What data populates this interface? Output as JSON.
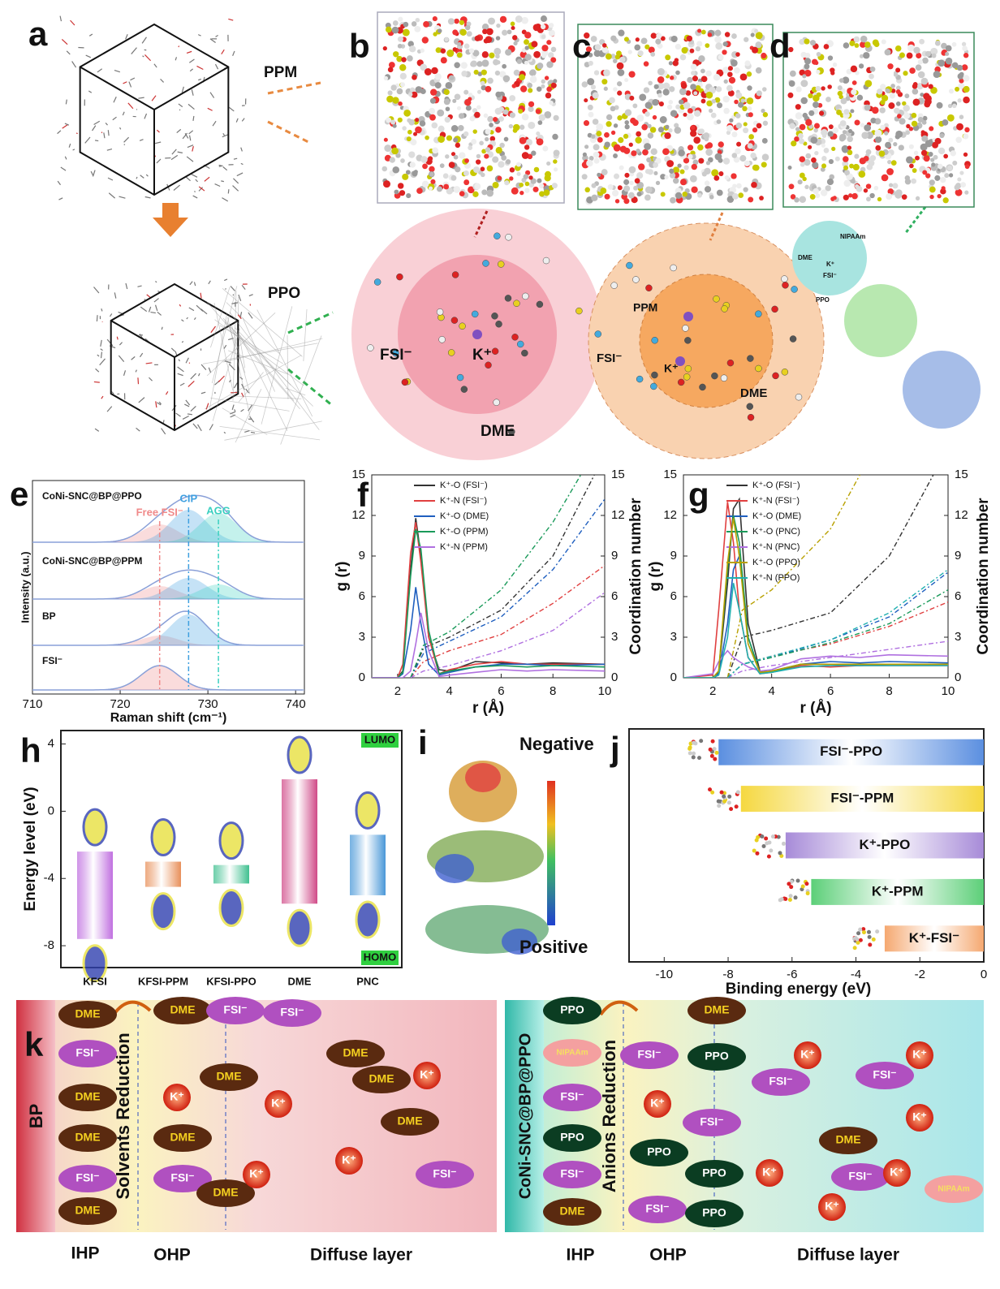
{
  "figure": {
    "a": {
      "letter": "a",
      "ppm": "PPM",
      "ppo": "PPO"
    },
    "b": {
      "letter": "b",
      "fsi": "FSI⁻",
      "k": "K⁺",
      "dme": "DME"
    },
    "c": {
      "letter": "c",
      "ppm": "PPM",
      "fsi": "FSI⁻",
      "k": "K⁺",
      "dme": "DME"
    },
    "d": {
      "letter": "d",
      "nipaam": "NIPAAm",
      "dme": "DME",
      "k": "K⁺",
      "fsi": "FSI⁻",
      "ppo": "PPO"
    },
    "i": {
      "letter": "i",
      "negative": "Negative",
      "positive": "Positive"
    },
    "k": {
      "letter": "k",
      "left": {
        "label": "BP",
        "process": "Solvents Reduction",
        "items": [
          "DME",
          "FSI⁻",
          "DME",
          "DME",
          "FSI⁻",
          "DME",
          "DME",
          "K⁺",
          "DME",
          "FSI⁻",
          "FSI⁻",
          "DME",
          "DME",
          "K⁺",
          "FSI⁻",
          "DME",
          "K⁺",
          "K⁺",
          "DME",
          "FSI⁻",
          "K⁺",
          "DME"
        ]
      },
      "right": {
        "label": "CoNi-SNC@BP@PPO",
        "process": "Anions Reduction",
        "items": [
          "PPO",
          "NIPAAm",
          "FSI⁻",
          "PPO",
          "FSI⁻",
          "DME",
          "DME",
          "FSI⁻",
          "K⁺",
          "FSI⁻",
          "PPO",
          "PPO",
          "FSI⁻",
          "PPO",
          "PPO",
          "K⁺",
          "FSI⁻",
          "K⁺",
          "FSI⁻",
          "K⁺",
          "DME",
          "K⁺",
          "FSI⁻",
          "K⁺",
          "NIPAAm",
          "K⁺"
        ]
      },
      "layers_left": [
        "IHP",
        "OHP",
        "Diffuse layer"
      ],
      "layers_right": [
        "IHP",
        "OHP",
        "Diffuse layer"
      ]
    }
  },
  "chart_data": [
    {
      "type": "spectra",
      "panel": "e",
      "xlabel": "Raman shift (cm⁻¹)",
      "ylabel": "Intensity (a.u.)",
      "xlim": [
        710,
        741
      ],
      "xticks": [
        710,
        720,
        730,
        740
      ],
      "traces": [
        "CoNi-SNC@BP@PPO",
        "CoNi-SNC@BP@PPM",
        "BP",
        "FSI⁻"
      ],
      "peaks": [
        {
          "label": "Free FSI⁻",
          "x": 724.5,
          "color": "#f08a8a"
        },
        {
          "label": "CIP",
          "x": 727.8,
          "color": "#3fa0e0"
        },
        {
          "label": "AGG",
          "x": 731.2,
          "color": "#3ad0c0"
        }
      ]
    },
    {
      "type": "line",
      "panel": "f",
      "xlabel": "r (Å)",
      "ylabel": "g (r)",
      "y2label": "Coordination number",
      "x": [
        1,
        2,
        2.2,
        2.5,
        2.7,
        2.9,
        3.2,
        3.6,
        4,
        5,
        6,
        7,
        8,
        10
      ],
      "cn_x": [
        2.5,
        3,
        4,
        6,
        8,
        10
      ],
      "xlim": [
        1,
        10
      ],
      "xticks": [
        2,
        4,
        6,
        8,
        10
      ],
      "ylim": [
        0,
        15
      ],
      "yticks": [
        0,
        3,
        6,
        9,
        12,
        15
      ],
      "y2lim": [
        0,
        15
      ],
      "y2ticks": [
        0,
        3,
        6,
        9,
        12,
        15
      ],
      "series": [
        {
          "name": "K⁺-O (FSI⁻)",
          "color": "#333333",
          "values": [
            0,
            0,
            0.5,
            8,
            11.8,
            9,
            3,
            0.6,
            0.5,
            1.2,
            1.1,
            1.0,
            1.1,
            1.0
          ],
          "cn": [
            0,
            2.2,
            3.0,
            5.0,
            9.0,
            16.5
          ]
        },
        {
          "name": "K⁺-N (FSI⁻)",
          "color": "#e04040",
          "values": [
            0,
            0,
            1,
            9.2,
            11.5,
            8.5,
            3,
            0.3,
            0.6,
            1.0,
            1.2,
            1.0,
            1.0,
            1.0
          ],
          "cn": [
            0,
            1.2,
            2.0,
            3.2,
            5.5,
            8.3
          ]
        },
        {
          "name": "K⁺-O (DME)",
          "color": "#1f5fbf",
          "values": [
            0,
            0,
            0.3,
            3.5,
            6.7,
            4,
            1,
            0.2,
            0.4,
            0.8,
            1.0,
            1.0,
            0.9,
            1.0
          ],
          "cn": [
            0,
            1.8,
            2.7,
            4.5,
            8.0,
            13.2
          ]
        },
        {
          "name": "K⁺-O (PPM)",
          "color": "#1a9a5a",
          "values": [
            0,
            0,
            0.4,
            7.5,
            11,
            9.5,
            3.5,
            0.3,
            0.5,
            0.8,
            0.9,
            0.8,
            0.9,
            0.8
          ],
          "cn": [
            0,
            2.4,
            3.4,
            6.5,
            11.5,
            18
          ]
        },
        {
          "name": "K⁺-N (PPM)",
          "color": "#b070e0",
          "values": [
            0,
            0,
            0,
            0.5,
            2.5,
            4.8,
            2,
            0.1,
            0.2,
            0.4,
            0.6,
            0.5,
            0.6,
            0.5
          ],
          "cn": [
            0,
            0.5,
            0.9,
            2.0,
            3.5,
            6.3
          ]
        }
      ]
    },
    {
      "type": "line",
      "panel": "g",
      "xlabel": "r (Å)",
      "ylabel": "g (r)",
      "y2label": "Coordination number",
      "x": [
        1,
        2,
        2.2,
        2.5,
        2.7,
        2.9,
        3.2,
        3.6,
        4,
        5,
        6,
        7,
        8,
        10
      ],
      "cn_x": [
        2.5,
        3,
        4,
        6,
        8,
        10
      ],
      "xlim": [
        1,
        10
      ],
      "xticks": [
        2,
        4,
        6,
        8,
        10
      ],
      "ylim": [
        0,
        15
      ],
      "yticks": [
        0,
        3,
        6,
        9,
        12,
        15
      ],
      "y2lim": [
        0,
        15
      ],
      "y2ticks": [
        0,
        3,
        6,
        9,
        12,
        15
      ],
      "series": [
        {
          "name": "K⁺-O (FSI⁻)",
          "color": "#333333",
          "values": [
            0,
            0,
            0.4,
            7,
            12.5,
            13.2,
            4,
            0.5,
            0.4,
            1.0,
            1.0,
            0.9,
            1.0,
            1.0
          ],
          "cn": [
            0,
            3,
            3.5,
            4.8,
            9,
            17
          ]
        },
        {
          "name": "K⁺-N (FSI⁻)",
          "color": "#e04040",
          "values": [
            0,
            0.2,
            5,
            13,
            10,
            5,
            1.5,
            0.3,
            0.4,
            0.9,
            0.8,
            0.9,
            0.9,
            0.9
          ],
          "cn": [
            0,
            1,
            1.6,
            2.5,
            3.8,
            5.6
          ]
        },
        {
          "name": "K⁺-O (DME)",
          "color": "#1f5fbf",
          "values": [
            0,
            0,
            0.3,
            4,
            8,
            9,
            3,
            0.4,
            0.5,
            1.0,
            1.2,
            1.1,
            1.2,
            1.1
          ],
          "cn": [
            0,
            1,
            1.5,
            2.8,
            4.5,
            7.8
          ]
        },
        {
          "name": "K⁺-O (PNC)",
          "color": "#1a9a5a",
          "values": [
            0,
            0,
            0.5,
            8,
            12,
            10,
            3,
            0.4,
            0.4,
            1.0,
            1.0,
            1.0,
            1.0,
            1.0
          ],
          "cn": [
            0,
            1,
            1.5,
            2.6,
            4,
            6.5
          ]
        },
        {
          "name": "K⁺-N (PNC)",
          "color": "#b070e0",
          "values": [
            0,
            0.3,
            1.2,
            2,
            1.5,
            1.2,
            0.8,
            0.5,
            0.6,
            1.4,
            1.6,
            1.5,
            1.7,
            1.6
          ],
          "cn": [
            0,
            0.5,
            0.9,
            1.5,
            2.1,
            2.7
          ]
        },
        {
          "name": "K⁺-O (PPO)",
          "color": "#b8a000",
          "values": [
            0,
            0,
            0.5,
            8.5,
            11.8,
            9,
            2.5,
            0.4,
            0.5,
            1.0,
            1.0,
            1.0,
            1.0,
            1.0
          ],
          "cn": [
            0,
            5,
            6.5,
            11,
            19,
            25
          ]
        },
        {
          "name": "K⁺-N (PPO)",
          "color": "#20b0b0",
          "values": [
            0,
            0,
            0.2,
            3,
            7,
            5,
            1.5,
            0.3,
            0.4,
            0.8,
            0.9,
            0.9,
            0.9,
            0.9
          ],
          "cn": [
            0,
            1,
            1.6,
            2.8,
            4.8,
            8
          ]
        }
      ]
    },
    {
      "type": "floating-bar",
      "panel": "h",
      "ylabel": "Energy level (eV)",
      "categories": [
        "KFSI",
        "KFSI-PPM",
        "KFSI-PPO",
        "DME",
        "PNC"
      ],
      "series": [
        {
          "name": "LUMO",
          "values": [
            -2.4,
            -3.0,
            -3.2,
            1.9,
            -1.4
          ]
        },
        {
          "name": "HOMO",
          "values": [
            -7.6,
            -4.5,
            -4.3,
            -5.5,
            -5.0
          ]
        }
      ],
      "colors": [
        "#c070e0",
        "#e8905a",
        "#40c090",
        "#d04a88",
        "#4a98d8"
      ],
      "ylim": [
        -9.3,
        4.8
      ],
      "yticks": [
        -8,
        -4,
        0,
        4
      ]
    },
    {
      "type": "hbar",
      "panel": "j",
      "xlabel": "Binding energy (eV)",
      "categories": [
        "FSI⁻-PPO",
        "FSI⁻-PPM",
        "K⁺-PPO",
        "K⁺-PPM",
        "K⁺-FSI⁻"
      ],
      "values": [
        -8.3,
        -7.6,
        -6.2,
        -5.4,
        -3.1
      ],
      "colors": [
        "#5b8fe0",
        "#f5d840",
        "#a78bd8",
        "#5ccf78",
        "#f5a870"
      ],
      "xlim": [
        -11.1,
        0
      ],
      "xticks": [
        -10,
        -8,
        -6,
        -4,
        -2,
        0
      ]
    }
  ]
}
